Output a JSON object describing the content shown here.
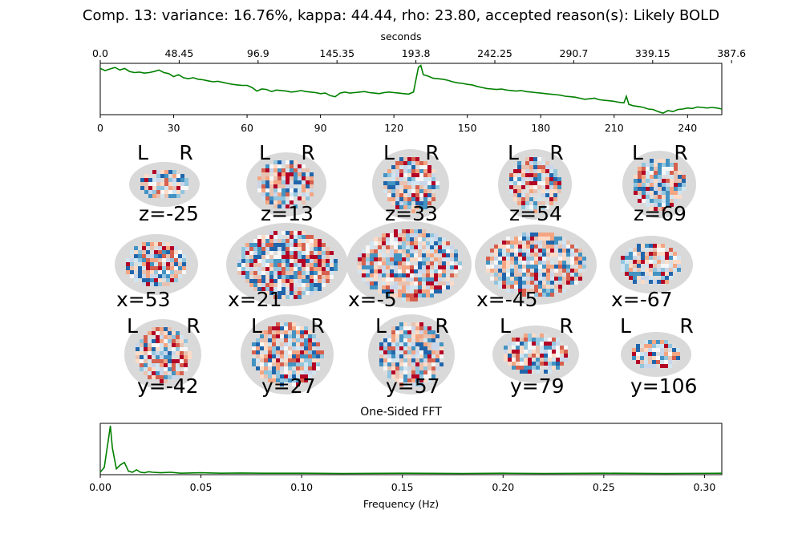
{
  "figure": {
    "title": "Comp. 13: variance: 16.76%, kappa: 44.44, rho: 23.80, accepted reason(s): Likely BOLD",
    "top_axis_label": "seconds",
    "fft_title": "One-Sided FFT",
    "fft_xlabel": "Frequency (Hz)",
    "trace_color": "#008000",
    "slices": {
      "rows": [
        {
          "view": "axial",
          "labels": [
            "z=-25",
            "z=13",
            "z=33",
            "z=54",
            "z=69"
          ],
          "side_labels": [
            "L",
            "R"
          ]
        },
        {
          "view": "sagittal",
          "labels": [
            "x=53",
            "x=21",
            "x=-5",
            "x=-45",
            "x=-67"
          ]
        },
        {
          "view": "coronal",
          "labels": [
            "y=-42",
            "y=27",
            "y=57",
            "y=79",
            "y=106"
          ],
          "side_labels": [
            "L",
            "R"
          ]
        }
      ]
    }
  },
  "chart_data": [
    {
      "type": "line",
      "name": "time series",
      "x_bottom_ticks": [
        "0",
        "30",
        "60",
        "90",
        "120",
        "150",
        "180",
        "210",
        "240"
      ],
      "x_top_ticks": [
        "0.0",
        "48.45",
        "96.9",
        "145.35",
        "193.8",
        "242.25",
        "290.7",
        "339.15",
        "387.6"
      ],
      "xlim": [
        0,
        254
      ],
      "ylim": [
        -2.6,
        2.4
      ],
      "x": [
        0,
        2,
        4,
        6,
        8,
        10,
        12,
        14,
        16,
        18,
        20,
        22,
        24,
        26,
        28,
        30,
        32,
        34,
        36,
        38,
        40,
        42,
        44,
        46,
        48,
        50,
        52,
        54,
        56,
        58,
        60,
        62,
        64,
        66,
        68,
        70,
        72,
        74,
        76,
        78,
        80,
        82,
        84,
        86,
        88,
        90,
        92,
        94,
        96,
        98,
        100,
        102,
        104,
        106,
        108,
        110,
        112,
        114,
        116,
        118,
        120,
        122,
        124,
        126,
        128,
        129,
        130,
        131,
        132,
        134,
        136,
        138,
        140,
        142,
        144,
        146,
        148,
        150,
        152,
        154,
        156,
        158,
        160,
        162,
        164,
        166,
        168,
        170,
        172,
        174,
        176,
        178,
        180,
        182,
        184,
        186,
        188,
        190,
        192,
        194,
        196,
        198,
        200,
        202,
        204,
        206,
        208,
        210,
        212,
        214,
        215,
        216,
        218,
        220,
        222,
        224,
        226,
        228,
        230,
        232,
        234,
        236,
        238,
        240,
        242,
        244,
        246,
        248,
        250,
        252,
        254
      ],
      "y": [
        1.9,
        1.7,
        1.85,
        2.0,
        1.75,
        1.9,
        1.6,
        1.5,
        1.55,
        1.45,
        1.5,
        1.6,
        1.75,
        1.5,
        1.4,
        1.1,
        1.3,
        1.0,
        0.9,
        1.0,
        0.85,
        0.8,
        0.7,
        0.6,
        0.65,
        0.55,
        0.45,
        0.35,
        0.3,
        0.25,
        0.25,
        0.05,
        -0.3,
        -0.1,
        -0.15,
        -0.35,
        -0.2,
        -0.25,
        -0.3,
        -0.4,
        -0.35,
        -0.25,
        -0.35,
        -0.4,
        -0.45,
        -0.55,
        -0.5,
        -0.75,
        -0.85,
        -0.5,
        -0.4,
        -0.5,
        -0.45,
        -0.4,
        -0.35,
        -0.45,
        -0.5,
        -0.55,
        -0.45,
        -0.4,
        -0.45,
        -0.5,
        -0.55,
        -0.6,
        -0.4,
        0.8,
        2.0,
        2.2,
        1.3,
        1.15,
        0.95,
        0.9,
        0.85,
        0.75,
        0.6,
        0.5,
        0.45,
        0.35,
        0.3,
        0.15,
        0.05,
        -0.05,
        -0.1,
        -0.15,
        -0.1,
        -0.2,
        -0.25,
        -0.3,
        -0.25,
        -0.35,
        -0.4,
        -0.45,
        -0.5,
        -0.55,
        -0.6,
        -0.65,
        -0.7,
        -0.8,
        -0.85,
        -0.9,
        -1.0,
        -1.1,
        -1.05,
        -1.0,
        -1.15,
        -1.2,
        -1.25,
        -1.3,
        -1.4,
        -1.45,
        -0.8,
        -1.6,
        -1.75,
        -1.8,
        -1.9,
        -2.05,
        -2.1,
        -2.3,
        -2.45,
        -2.2,
        -2.3,
        -2.1,
        -2.05,
        -1.95,
        -2.0,
        -1.85,
        -1.9,
        -1.95,
        -1.9,
        -1.95,
        -2.05
      ]
    },
    {
      "type": "line",
      "name": "One-Sided FFT",
      "xlabel": "Frequency (Hz)",
      "x_ticks": [
        "0.00",
        "0.05",
        "0.10",
        "0.15",
        "0.20",
        "0.25",
        "0.30"
      ],
      "xlim": [
        0,
        0.3086
      ],
      "ylim": [
        0,
        1.05
      ],
      "x": [
        0,
        0.002,
        0.004,
        0.005,
        0.006,
        0.008,
        0.01,
        0.012,
        0.014,
        0.016,
        0.018,
        0.02,
        0.022,
        0.024,
        0.026,
        0.03,
        0.035,
        0.04,
        0.05,
        0.06,
        0.07,
        0.08,
        0.1,
        0.12,
        0.15,
        0.18,
        0.2,
        0.22,
        0.25,
        0.28,
        0.3086
      ],
      "y": [
        0.05,
        0.15,
        0.7,
        1.0,
        0.55,
        0.12,
        0.2,
        0.25,
        0.07,
        0.05,
        0.1,
        0.05,
        0.04,
        0.06,
        0.05,
        0.04,
        0.05,
        0.03,
        0.04,
        0.03,
        0.035,
        0.03,
        0.03,
        0.025,
        0.03,
        0.025,
        0.03,
        0.025,
        0.03,
        0.025,
        0.03
      ]
    }
  ]
}
